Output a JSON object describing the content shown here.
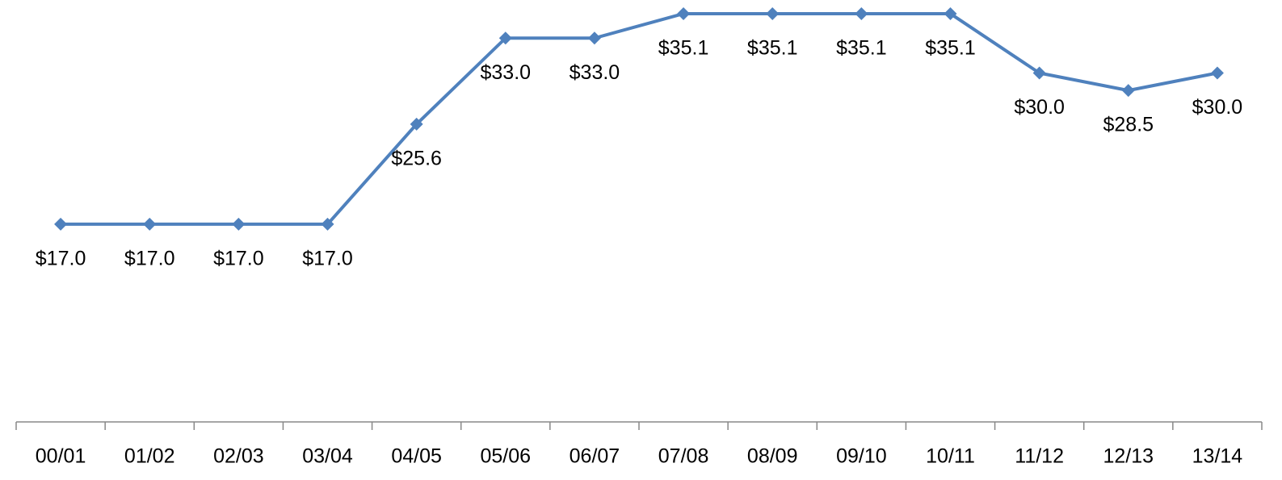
{
  "chart_data": {
    "type": "line",
    "categories": [
      "00/01",
      "01/02",
      "02/03",
      "03/04",
      "04/05",
      "05/06",
      "06/07",
      "07/08",
      "08/09",
      "09/10",
      "10/11",
      "11/12",
      "12/13",
      "13/14"
    ],
    "series": [
      {
        "color": "#4f81bd",
        "values": [
          17.0,
          17.0,
          17.0,
          17.0,
          25.6,
          33.0,
          33.0,
          35.1,
          35.1,
          35.1,
          35.1,
          30.0,
          28.5,
          30.0
        ],
        "value_labels": [
          "$17.0",
          "$17.0",
          "$17.0",
          "$17.0",
          "$25.6",
          "$33.0",
          "$33.0",
          "$35.1",
          "$35.1",
          "$35.1",
          "$35.1",
          "$30.0",
          "$28.5",
          "$30.0"
        ]
      }
    ],
    "ylim": [
      0,
      36
    ]
  }
}
